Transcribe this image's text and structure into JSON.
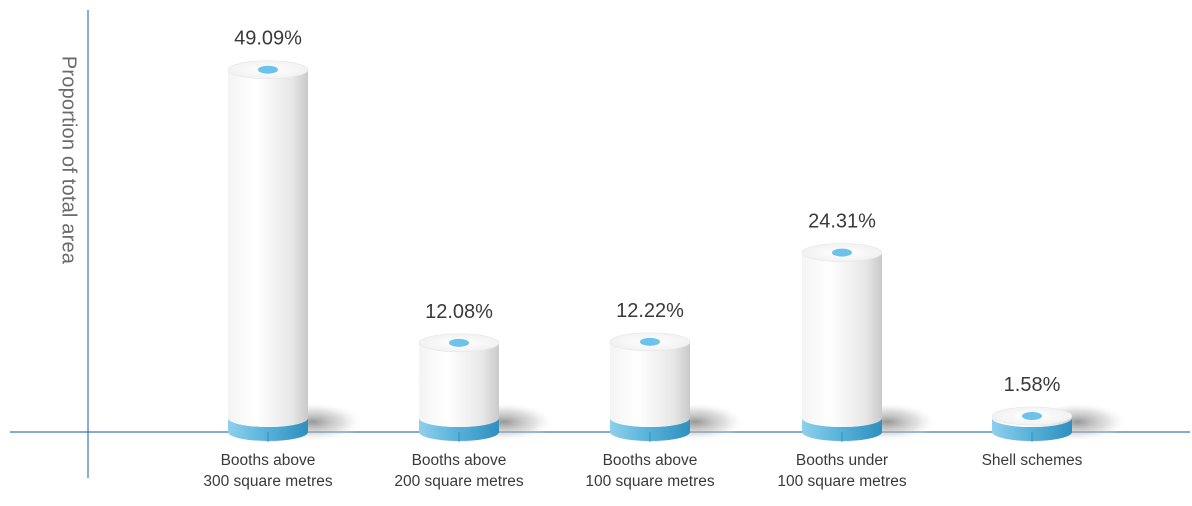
{
  "chart_data": {
    "type": "bar",
    "style": "3d-cylinder",
    "title": "",
    "xlabel": "",
    "ylabel": "Proportion of total area",
    "categories": [
      [
        "Booths above",
        "300 square metres"
      ],
      [
        "Booths above",
        "200 square metres"
      ],
      [
        "Booths above",
        "100 square metres"
      ],
      [
        "Booths under",
        "100 square metres"
      ],
      [
        "Shell schemes"
      ]
    ],
    "values": [
      49.09,
      12.08,
      12.22,
      24.31,
      1.58
    ],
    "value_labels": [
      "49.09%",
      "12.08%",
      "12.22%",
      "24.31%",
      "1.58%"
    ],
    "unit": "%",
    "ylim": [
      0,
      50
    ],
    "grid": false,
    "legend": "none",
    "colors": {
      "axis": "#3a78b8",
      "cylinder_body_light": "#ffffff",
      "cylinder_body_dark": "#c9c9c9",
      "base_ring": "#5bb3db",
      "base_ring_dark": "#2f8fbf",
      "top_dot": "#6cc3ea",
      "label_text": "#3a3a3a",
      "axis_title_text": "#6b6b6b"
    }
  }
}
